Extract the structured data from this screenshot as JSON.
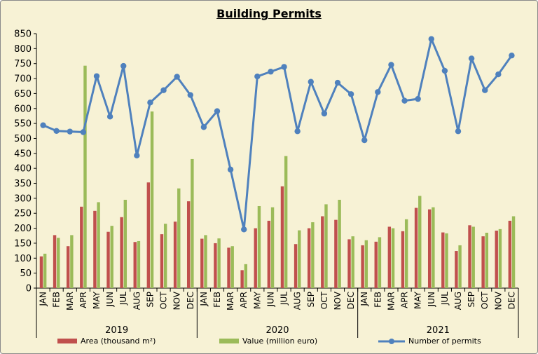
{
  "chart_data": {
    "type": "bar+line",
    "title": "Building Permits",
    "ylim": [
      0,
      850
    ],
    "yticks": [
      0,
      50,
      100,
      150,
      200,
      250,
      300,
      350,
      400,
      450,
      500,
      550,
      600,
      650,
      700,
      750,
      800,
      850
    ],
    "grid": "none",
    "legend": "bottom",
    "years": [
      "2019",
      "2020",
      "2021"
    ],
    "months": [
      "JAN",
      "FEB",
      "MAR",
      "APR",
      "MAY",
      "JUN",
      "JUL",
      "AUG",
      "SEP",
      "OCT",
      "NOV",
      "DEC"
    ],
    "series": [
      {
        "name": "Area (thousand m²)",
        "kind": "bar",
        "color": "#c0504d",
        "values": [
          106,
          177,
          140,
          272,
          258,
          188,
          237,
          154,
          353,
          180,
          222,
          290,
          165,
          150,
          135,
          60,
          200,
          225,
          340,
          147,
          200,
          240,
          228,
          163,
          143,
          155,
          205,
          190,
          268,
          263,
          186,
          124,
          210,
          173,
          192,
          225
        ]
      },
      {
        "name": "Value (million euro)",
        "kind": "bar",
        "color": "#9bbb59",
        "values": [
          115,
          168,
          177,
          743,
          287,
          208,
          295,
          157,
          590,
          215,
          333,
          431,
          177,
          166,
          140,
          80,
          274,
          270,
          441,
          193,
          220,
          280,
          295,
          173,
          160,
          170,
          200,
          230,
          308,
          270,
          183,
          143,
          205,
          185,
          197,
          240
        ]
      },
      {
        "name": "Number of permits",
        "kind": "line",
        "color": "#4f81bd",
        "values": [
          544,
          525,
          523,
          521,
          708,
          573,
          742,
          443,
          620,
          661,
          706,
          645,
          538,
          591,
          396,
          196,
          707,
          723,
          739,
          524,
          689,
          583,
          686,
          648,
          494,
          655,
          746,
          626,
          632,
          832,
          726,
          524,
          767,
          661,
          714,
          777
        ]
      }
    ]
  }
}
